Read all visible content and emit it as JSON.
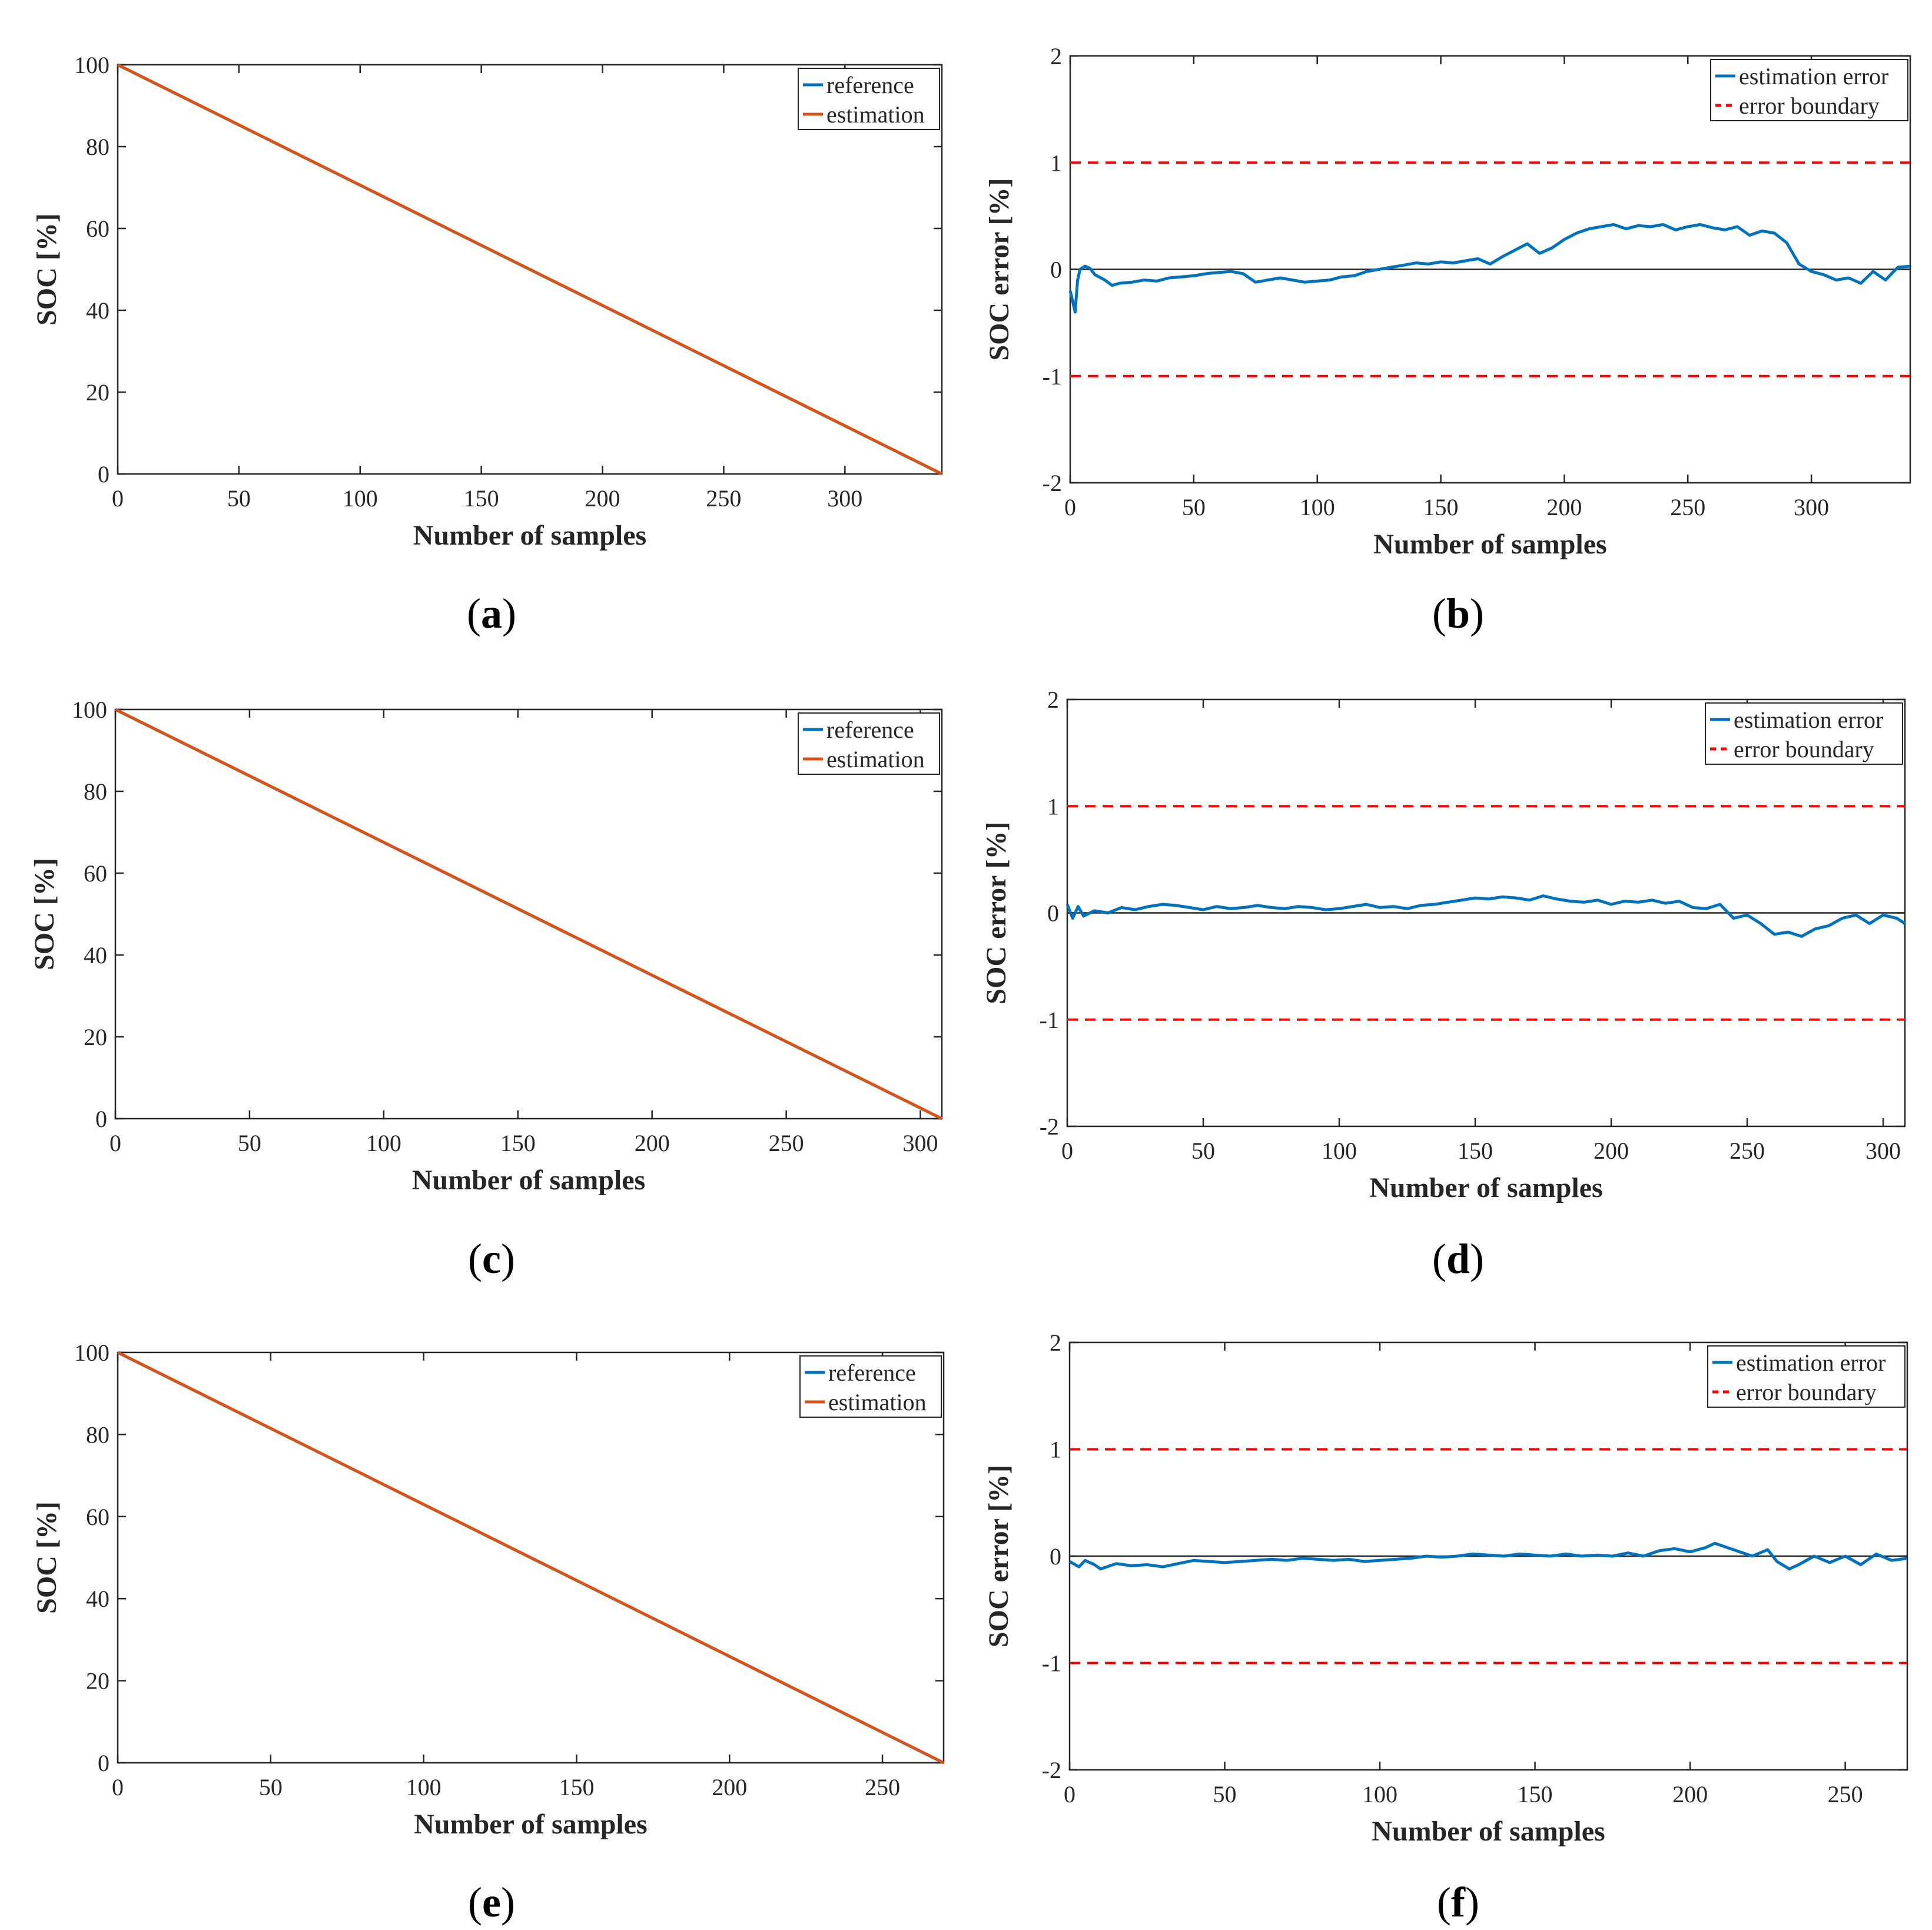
{
  "colors": {
    "reference": "#0072BD",
    "estimation": "#D95319",
    "estimation_error": "#0072BD",
    "error_boundary": "#FF0000",
    "zero_line": "#262626",
    "axes": "#262626"
  },
  "chart_data": [
    {
      "id": "a",
      "panel_label": "a",
      "type": "line",
      "title": "",
      "xlabel": "Number of samples",
      "ylabel": "SOC [%]",
      "xlim": [
        0,
        340
      ],
      "ylim": [
        0,
        100
      ],
      "xticks": [
        0,
        50,
        100,
        150,
        200,
        250,
        300
      ],
      "xticklabels": [
        "0",
        "50",
        "100",
        "150",
        "200",
        "250",
        "300"
      ],
      "yticks": [
        0,
        20,
        40,
        60,
        80,
        100
      ],
      "yticklabels": [
        "0",
        "20",
        "40",
        "60",
        "80",
        "100"
      ],
      "legend": {
        "position": "top-right",
        "entries": [
          "reference",
          "estimation"
        ]
      },
      "series": [
        {
          "name": "reference",
          "style": "solid",
          "x": [
            0,
            340
          ],
          "y": [
            100,
            0
          ]
        },
        {
          "name": "estimation",
          "style": "solid",
          "x": [
            0,
            340
          ],
          "y": [
            100,
            0
          ]
        }
      ]
    },
    {
      "id": "b",
      "panel_label": "b",
      "type": "line",
      "title": "",
      "xlabel": "Number of samples",
      "ylabel": "SOC error [%]",
      "xlim": [
        0,
        340
      ],
      "ylim": [
        -2,
        2
      ],
      "xticks": [
        0,
        50,
        100,
        150,
        200,
        250,
        300
      ],
      "xticklabels": [
        "0",
        "50",
        "100",
        "150",
        "200",
        "250",
        "300"
      ],
      "yticks": [
        -2,
        -1,
        0,
        1,
        2
      ],
      "yticklabels": [
        "-2",
        "-1",
        "0",
        "1",
        "2"
      ],
      "zero_line": true,
      "legend": {
        "position": "top-right",
        "entries": [
          "estimation error",
          "error boundary"
        ]
      },
      "series": [
        {
          "name": "estimation error",
          "style": "solid",
          "x": [
            0,
            2,
            3,
            4,
            6,
            8,
            10,
            14,
            17,
            20,
            25,
            30,
            35,
            40,
            45,
            50,
            55,
            60,
            65,
            70,
            75,
            80,
            85,
            90,
            95,
            100,
            105,
            110,
            115,
            120,
            125,
            130,
            135,
            140,
            145,
            150,
            155,
            160,
            165,
            170,
            175,
            180,
            185,
            190,
            195,
            200,
            205,
            210,
            215,
            220,
            225,
            230,
            235,
            240,
            245,
            250,
            255,
            260,
            265,
            270,
            275,
            280,
            285,
            290,
            295,
            300,
            305,
            310,
            315,
            320,
            325,
            330,
            335,
            340
          ],
          "y": [
            -0.2,
            -0.4,
            -0.1,
            0.0,
            0.03,
            0.01,
            -0.05,
            -0.1,
            -0.15,
            -0.13,
            -0.12,
            -0.1,
            -0.11,
            -0.08,
            -0.07,
            -0.06,
            -0.04,
            -0.03,
            -0.02,
            -0.04,
            -0.12,
            -0.1,
            -0.08,
            -0.1,
            -0.12,
            -0.11,
            -0.1,
            -0.07,
            -0.06,
            -0.02,
            0.0,
            0.02,
            0.04,
            0.06,
            0.05,
            0.07,
            0.06,
            0.08,
            0.1,
            0.05,
            0.12,
            0.18,
            0.24,
            0.15,
            0.2,
            0.28,
            0.34,
            0.38,
            0.4,
            0.42,
            0.38,
            0.41,
            0.4,
            0.42,
            0.37,
            0.4,
            0.42,
            0.39,
            0.37,
            0.4,
            0.32,
            0.36,
            0.34,
            0.25,
            0.05,
            -0.02,
            -0.05,
            -0.1,
            -0.08,
            -0.13,
            -0.02,
            -0.1,
            0.02,
            0.03
          ]
        },
        {
          "name": "error boundary",
          "style": "dashed",
          "x": [
            0,
            340
          ],
          "y": [
            1,
            1
          ]
        },
        {
          "name": "error boundary",
          "style": "dashed",
          "x": [
            0,
            340
          ],
          "y": [
            -1,
            -1
          ]
        }
      ]
    },
    {
      "id": "c",
      "panel_label": "c",
      "type": "line",
      "title": "",
      "xlabel": "Number of samples",
      "ylabel": "SOC [%]",
      "xlim": [
        0,
        308
      ],
      "ylim": [
        0,
        100
      ],
      "xticks": [
        0,
        50,
        100,
        150,
        200,
        250,
        300
      ],
      "xticklabels": [
        "0",
        "50",
        "100",
        "150",
        "200",
        "250",
        "300"
      ],
      "yticks": [
        0,
        20,
        40,
        60,
        80,
        100
      ],
      "yticklabels": [
        "0",
        "20",
        "40",
        "60",
        "80",
        "100"
      ],
      "legend": {
        "position": "top-right",
        "entries": [
          "reference",
          "estimation"
        ]
      },
      "series": [
        {
          "name": "reference",
          "style": "solid",
          "x": [
            0,
            308
          ],
          "y": [
            100,
            0
          ]
        },
        {
          "name": "estimation",
          "style": "solid",
          "x": [
            0,
            308
          ],
          "y": [
            100,
            0
          ]
        }
      ]
    },
    {
      "id": "d",
      "panel_label": "d",
      "type": "line",
      "title": "",
      "xlabel": "Number of samples",
      "ylabel": "SOC error [%]",
      "xlim": [
        0,
        308
      ],
      "ylim": [
        -2,
        2
      ],
      "xticks": [
        0,
        50,
        100,
        150,
        200,
        250,
        300
      ],
      "xticklabels": [
        "0",
        "50",
        "100",
        "150",
        "200",
        "250",
        "300"
      ],
      "yticks": [
        -2,
        -1,
        0,
        1,
        2
      ],
      "yticklabels": [
        "-2",
        "-1",
        "0",
        "1",
        "2"
      ],
      "zero_line": true,
      "legend": {
        "position": "top-right",
        "entries": [
          "estimation error",
          "error boundary"
        ]
      },
      "series": [
        {
          "name": "estimation error",
          "style": "solid",
          "x": [
            0,
            2,
            4,
            6,
            10,
            15,
            20,
            25,
            30,
            35,
            40,
            45,
            50,
            55,
            60,
            65,
            70,
            75,
            80,
            85,
            90,
            95,
            100,
            105,
            110,
            115,
            120,
            125,
            130,
            135,
            140,
            145,
            150,
            155,
            160,
            165,
            170,
            175,
            180,
            185,
            190,
            195,
            200,
            205,
            210,
            215,
            220,
            225,
            230,
            235,
            240,
            245,
            250,
            255,
            260,
            265,
            270,
            275,
            280,
            285,
            290,
            295,
            300,
            305,
            308
          ],
          "y": [
            0.08,
            -0.05,
            0.06,
            -0.03,
            0.02,
            0.0,
            0.05,
            0.03,
            0.06,
            0.08,
            0.07,
            0.05,
            0.03,
            0.06,
            0.04,
            0.05,
            0.07,
            0.05,
            0.04,
            0.06,
            0.05,
            0.03,
            0.04,
            0.06,
            0.08,
            0.05,
            0.06,
            0.04,
            0.07,
            0.08,
            0.1,
            0.12,
            0.14,
            0.13,
            0.15,
            0.14,
            0.12,
            0.16,
            0.13,
            0.11,
            0.1,
            0.12,
            0.08,
            0.11,
            0.1,
            0.12,
            0.09,
            0.11,
            0.05,
            0.04,
            0.08,
            -0.05,
            -0.02,
            -0.1,
            -0.2,
            -0.18,
            -0.22,
            -0.15,
            -0.12,
            -0.05,
            -0.02,
            -0.1,
            -0.02,
            -0.05,
            -0.1
          ]
        },
        {
          "name": "error boundary",
          "style": "dashed",
          "x": [
            0,
            308
          ],
          "y": [
            1,
            1
          ]
        },
        {
          "name": "error boundary",
          "style": "dashed",
          "x": [
            0,
            308
          ],
          "y": [
            -1,
            -1
          ]
        }
      ]
    },
    {
      "id": "e",
      "panel_label": "e",
      "type": "line",
      "title": "",
      "xlabel": "Number of samples",
      "ylabel": "SOC [%]",
      "xlim": [
        0,
        270
      ],
      "ylim": [
        0,
        100
      ],
      "xticks": [
        0,
        50,
        100,
        150,
        200,
        250
      ],
      "xticklabels": [
        "0",
        "50",
        "100",
        "150",
        "200",
        "250"
      ],
      "yticks": [
        0,
        20,
        40,
        60,
        80,
        100
      ],
      "yticklabels": [
        "0",
        "20",
        "40",
        "60",
        "80",
        "100"
      ],
      "legend": {
        "position": "top-right",
        "entries": [
          "reference",
          "estimation"
        ]
      },
      "series": [
        {
          "name": "reference",
          "style": "solid",
          "x": [
            0,
            270
          ],
          "y": [
            100,
            0
          ]
        },
        {
          "name": "estimation",
          "style": "solid",
          "x": [
            0,
            270
          ],
          "y": [
            100,
            0
          ]
        }
      ]
    },
    {
      "id": "f",
      "panel_label": "f",
      "type": "line",
      "title": "",
      "xlabel": "Number of samples",
      "ylabel": "SOC error [%]",
      "xlim": [
        0,
        270
      ],
      "ylim": [
        -2,
        2
      ],
      "xticks": [
        0,
        50,
        100,
        150,
        200,
        250
      ],
      "xticklabels": [
        "0",
        "50",
        "100",
        "150",
        "200",
        "250"
      ],
      "yticks": [
        -2,
        -1,
        0,
        1,
        2
      ],
      "yticklabels": [
        "-2",
        "-1",
        "0",
        "1",
        "2"
      ],
      "zero_line": true,
      "legend": {
        "position": "top-right",
        "entries": [
          "estimation error",
          "error boundary"
        ]
      },
      "series": [
        {
          "name": "estimation error",
          "style": "solid",
          "x": [
            0,
            3,
            5,
            8,
            10,
            15,
            20,
            25,
            30,
            35,
            40,
            45,
            50,
            55,
            60,
            65,
            70,
            75,
            80,
            85,
            90,
            95,
            100,
            105,
            110,
            115,
            120,
            125,
            130,
            135,
            140,
            145,
            150,
            155,
            160,
            165,
            170,
            175,
            180,
            185,
            190,
            195,
            200,
            205,
            208,
            212,
            215,
            220,
            225,
            228,
            232,
            235,
            240,
            245,
            250,
            255,
            258,
            260,
            265,
            270
          ],
          "y": [
            -0.05,
            -0.1,
            -0.04,
            -0.08,
            -0.12,
            -0.07,
            -0.09,
            -0.08,
            -0.1,
            -0.07,
            -0.04,
            -0.05,
            -0.06,
            -0.05,
            -0.04,
            -0.03,
            -0.04,
            -0.02,
            -0.03,
            -0.04,
            -0.03,
            -0.05,
            -0.04,
            -0.03,
            -0.02,
            0.0,
            -0.01,
            0.0,
            0.02,
            0.01,
            0.0,
            0.02,
            0.01,
            0.0,
            0.02,
            0.0,
            0.01,
            0.0,
            0.03,
            0.0,
            0.05,
            0.07,
            0.04,
            0.08,
            0.12,
            0.08,
            0.05,
            0.0,
            0.06,
            -0.05,
            -0.12,
            -0.08,
            0.0,
            -0.06,
            0.0,
            -0.08,
            -0.02,
            0.02,
            -0.04,
            -0.02
          ]
        },
        {
          "name": "error boundary",
          "style": "dashed",
          "x": [
            0,
            270
          ],
          "y": [
            1,
            1
          ]
        },
        {
          "name": "error boundary",
          "style": "dashed",
          "x": [
            0,
            270
          ],
          "y": [
            -1,
            -1
          ]
        }
      ]
    }
  ]
}
